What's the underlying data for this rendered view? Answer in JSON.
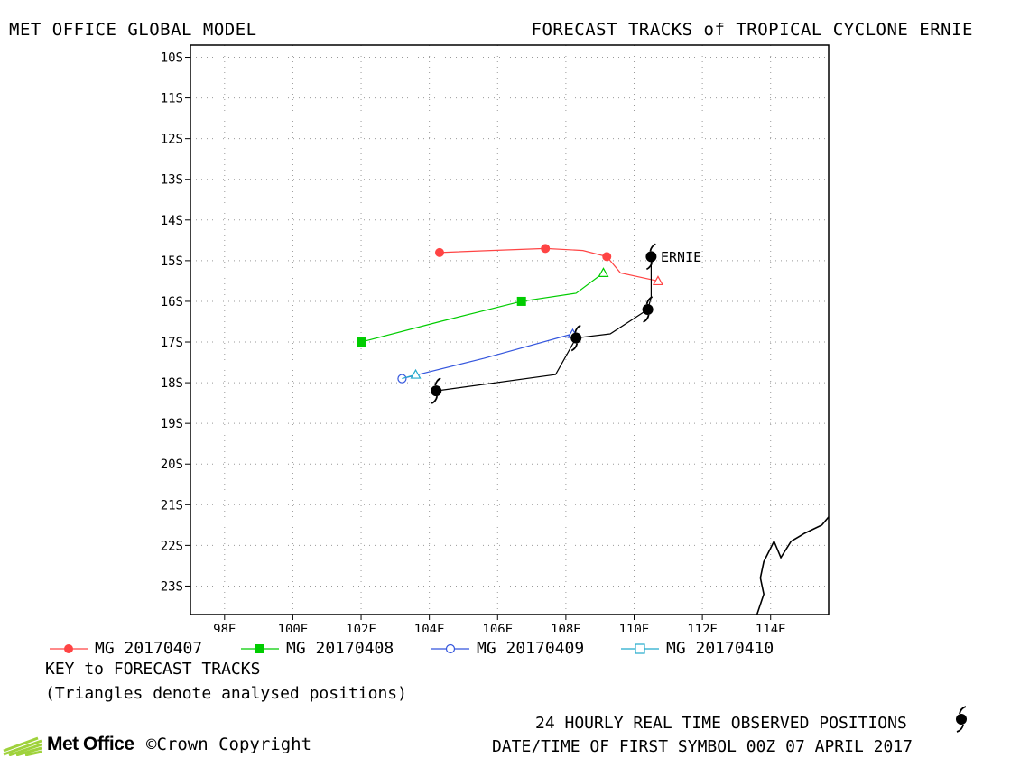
{
  "header": {
    "left_title": "MET OFFICE GLOBAL MODEL",
    "right_title": "FORECAST TRACKS of TROPICAL CYCLONE ERNIE"
  },
  "map": {
    "lon_range": [
      97,
      115.7
    ],
    "lat_range": [
      -23.7,
      -9.7
    ],
    "lat_ticks": [
      "10S",
      "11S",
      "12S",
      "13S",
      "14S",
      "15S",
      "16S",
      "17S",
      "18S",
      "19S",
      "20S",
      "21S",
      "22S",
      "23S"
    ],
    "lat_values": [
      -10,
      -11,
      -12,
      -13,
      -14,
      -15,
      -16,
      -17,
      -18,
      -19,
      -20,
      -21,
      -22,
      -23
    ],
    "lon_ticks": [
      "98E",
      "100E",
      "102E",
      "104E",
      "106E",
      "108E",
      "110E",
      "112E",
      "114E"
    ],
    "lon_values": [
      98,
      100,
      102,
      104,
      106,
      108,
      110,
      112,
      114
    ],
    "grid": "dotted",
    "storm_label": "ERNIE",
    "coastline": [
      [
        115.7,
        -21.3
      ],
      [
        115.5,
        -21.5
      ],
      [
        115.0,
        -21.7
      ],
      [
        114.6,
        -21.9
      ],
      [
        114.3,
        -22.3
      ],
      [
        114.1,
        -21.9
      ],
      [
        113.8,
        -22.4
      ],
      [
        113.7,
        -22.8
      ],
      [
        113.8,
        -23.2
      ],
      [
        113.6,
        -23.7
      ]
    ]
  },
  "chart_data": {
    "type": "map-tracks",
    "storm": "ERNIE",
    "series": [
      {
        "name": "MG 20170407",
        "color": "#ff4444",
        "marker": "filled-circle",
        "points": [
          [
            104.3,
            -14.8
          ],
          [
            107.4,
            -14.7
          ],
          [
            109.2,
            -14.9
          ]
        ],
        "line": [
          [
            104.3,
            -14.8
          ],
          [
            105.8,
            -14.75
          ],
          [
            107.4,
            -14.7
          ],
          [
            108.5,
            -14.75
          ],
          [
            109.2,
            -14.9
          ],
          [
            109.6,
            -15.3
          ],
          [
            110.7,
            -15.5
          ]
        ],
        "analysed": [
          110.7,
          -15.5
        ]
      },
      {
        "name": "MG 20170408",
        "color": "#00cc00",
        "marker": "filled-square",
        "points": [
          [
            102.0,
            -17.0
          ],
          [
            106.7,
            -16.0
          ]
        ],
        "line": [
          [
            102.0,
            -17.0
          ],
          [
            104.3,
            -16.5
          ],
          [
            106.7,
            -16.0
          ],
          [
            108.3,
            -15.8
          ],
          [
            109.1,
            -15.3
          ]
        ],
        "analysed": [
          109.1,
          -15.3
        ]
      },
      {
        "name": "MG 20170409",
        "color": "#3355dd",
        "marker": "open-circle",
        "points": [
          [
            103.2,
            -17.9
          ]
        ],
        "line": [
          [
            103.2,
            -17.9
          ],
          [
            105.6,
            -17.4
          ],
          [
            108.2,
            -16.8
          ]
        ],
        "analysed": [
          108.2,
          -16.8
        ]
      },
      {
        "name": "MG 20170410",
        "color": "#22aacc",
        "marker": "open-square",
        "points": [],
        "line": [
          [
            103.6,
            -17.8
          ],
          [
            103.2,
            -17.9
          ]
        ],
        "analysed": [
          103.6,
          -17.8
        ]
      }
    ],
    "observed": {
      "color": "#000000",
      "points": [
        [
          110.5,
          -14.9
        ],
        [
          110.4,
          -16.2
        ],
        [
          108.3,
          -16.9
        ],
        [
          104.2,
          -18.2
        ]
      ],
      "line": [
        [
          110.5,
          -14.9
        ],
        [
          110.5,
          -15.9
        ],
        [
          110.4,
          -16.2
        ],
        [
          109.3,
          -16.8
        ],
        [
          108.3,
          -16.9
        ],
        [
          107.7,
          -17.8
        ],
        [
          104.2,
          -18.2
        ]
      ]
    }
  },
  "legend": [
    {
      "label": "MG 20170407",
      "color": "#ff4444",
      "marker": "filled-circle"
    },
    {
      "label": "MG 20170408",
      "color": "#00cc00",
      "marker": "filled-square"
    },
    {
      "label": "MG 20170409",
      "color": "#3355dd",
      "marker": "open-circle"
    },
    {
      "label": "MG 20170410",
      "color": "#22aacc",
      "marker": "open-square"
    }
  ],
  "key": {
    "title": "KEY to FORECAST TRACKS",
    "note": "(Triangles denote analysed positions)"
  },
  "footer": {
    "observed_label": "24 HOURLY REAL TIME OBSERVED POSITIONS",
    "datetime_label": "DATE/TIME OF FIRST SYMBOL 00Z 07 APRIL 2017",
    "logo_text": "Met Office",
    "copyright": "©Crown Copyright"
  }
}
